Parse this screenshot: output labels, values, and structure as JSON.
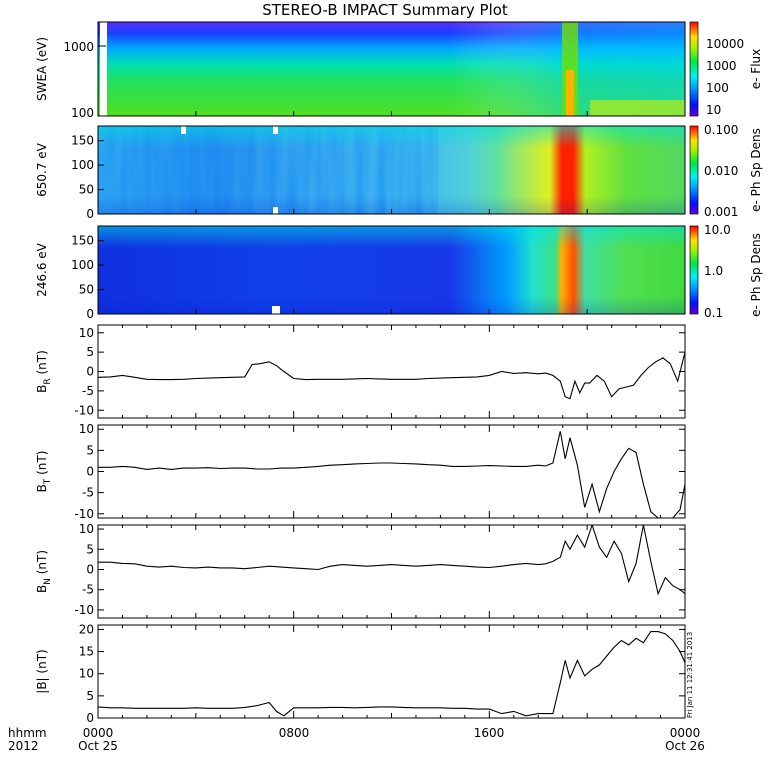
{
  "title": "STEREO-B IMPACT Summary Plot",
  "footer": {
    "left_label_1": "hhmm",
    "left_label_2": "2012",
    "x_ticks": [
      {
        "hhmm": "0000",
        "date": "Oct 25"
      },
      {
        "hhmm": "0800",
        "date": ""
      },
      {
        "hhmm": "1600",
        "date": ""
      },
      {
        "hhmm": "0000",
        "date": "Oct 26"
      }
    ],
    "timestamp": "Fri Jan 11 12:31:41 2013"
  },
  "chart_data": [
    {
      "type": "heatmap",
      "id": "swea",
      "ylabel": "SWEA (eV)",
      "ylog": true,
      "yticks": [
        "1000",
        "100"
      ],
      "colorbar": {
        "label": "e- Flux",
        "ticks": [
          "10000",
          "1000",
          "100",
          "10"
        ],
        "log": true
      }
    },
    {
      "type": "heatmap",
      "id": "pad650",
      "ylabel": "650.7 eV",
      "yticks": [
        "150",
        "100",
        "50",
        "0"
      ],
      "ylim": [
        0,
        180
      ],
      "colorbar": {
        "label": "e- Ph Sp Dens",
        "ticks": [
          "0.100",
          "0.010",
          "0.001"
        ],
        "log": true
      }
    },
    {
      "type": "heatmap",
      "id": "pad246",
      "ylabel": "246.6 eV",
      "yticks": [
        "150",
        "100",
        "50",
        "0"
      ],
      "ylim": [
        0,
        180
      ],
      "colorbar": {
        "label": "e- Ph Sp Dens",
        "ticks": [
          "10.0",
          "1.0",
          "0.1"
        ],
        "log": true
      }
    },
    {
      "type": "line",
      "id": "br",
      "ylabel_main": "B",
      "ylabel_sub": "R",
      "ylabel_unit": "(nT)",
      "ylim": [
        -12,
        12
      ],
      "yticks": [
        10,
        5,
        0,
        -5,
        -10
      ],
      "x_hours": [
        0,
        0.5,
        1,
        1.5,
        2,
        2.5,
        3,
        3.5,
        4,
        4.5,
        5,
        5.5,
        6,
        6.3,
        6.6,
        7,
        7.3,
        7.6,
        8,
        8.5,
        9,
        9.5,
        10,
        10.5,
        11,
        11.5,
        12,
        12.5,
        13,
        13.5,
        14,
        14.5,
        15,
        15.5,
        16,
        16.5,
        17,
        17.5,
        18,
        18.3,
        18.6,
        18.9,
        19.1,
        19.3,
        19.5,
        19.7,
        19.9,
        20.1,
        20.4,
        20.7,
        21,
        21.3,
        21.6,
        21.9,
        22.2,
        22.5,
        22.8,
        23.1,
        23.4,
        23.7,
        24
      ],
      "values": [
        -1.5,
        -1.4,
        -1.0,
        -1.5,
        -2.0,
        -2.1,
        -2.1,
        -2.0,
        -1.8,
        -1.7,
        -1.6,
        -1.5,
        -1.4,
        1.8,
        2.0,
        2.5,
        1.5,
        0,
        -1.8,
        -2.1,
        -2.0,
        -2.0,
        -2.0,
        -1.9,
        -1.8,
        -1.9,
        -2.0,
        -2.0,
        -2.0,
        -1.8,
        -1.7,
        -1.6,
        -1.5,
        -1.4,
        -1.0,
        0,
        -0.5,
        -0.3,
        -0.6,
        -0.4,
        -1.0,
        -2.5,
        -6.5,
        -7.0,
        -2.5,
        -5.5,
        -3.0,
        -3.0,
        -1.0,
        -2.5,
        -6.5,
        -4.5,
        -4.0,
        -3.5,
        -1.0,
        1.0,
        2.5,
        3.5,
        2.0,
        -2.5,
        5.0
      ]
    },
    {
      "type": "line",
      "id": "bt",
      "ylabel_main": "B",
      "ylabel_sub": "T",
      "ylabel_unit": "(nT)",
      "ylim": [
        -11,
        11
      ],
      "yticks": [
        10,
        5,
        0,
        -5,
        -10
      ],
      "x_hours": [
        0,
        0.5,
        1,
        1.5,
        2,
        2.5,
        3,
        3.5,
        4,
        4.5,
        5,
        5.5,
        6,
        6.5,
        7,
        7.5,
        8,
        8.5,
        9,
        9.5,
        10,
        10.5,
        11,
        11.5,
        12,
        12.5,
        13,
        13.5,
        14,
        14.5,
        15,
        15.5,
        16,
        16.5,
        17,
        17.5,
        18,
        18.3,
        18.6,
        18.9,
        19.1,
        19.3,
        19.6,
        19.9,
        20.2,
        20.5,
        20.8,
        21.1,
        21.4,
        21.7,
        22,
        22.3,
        22.6,
        22.9,
        23.2,
        23.5,
        23.8,
        24
      ],
      "values": [
        1.0,
        1.0,
        1.2,
        1.0,
        0.5,
        0.8,
        0.5,
        0.8,
        0.8,
        0.9,
        0.7,
        0.8,
        0.8,
        0.6,
        0.6,
        0.8,
        0.8,
        1.0,
        1.2,
        1.5,
        1.6,
        1.8,
        1.9,
        2.0,
        2.0,
        1.9,
        1.8,
        1.6,
        1.5,
        1.2,
        1.2,
        1.3,
        1.4,
        1.3,
        1.2,
        1.2,
        1.5,
        1.3,
        2.0,
        9.5,
        3.0,
        8.0,
        1.5,
        -8.5,
        -3.0,
        -9.5,
        -4.0,
        0,
        3.0,
        5.5,
        4.5,
        -3.0,
        -9.5,
        -11,
        -11,
        -11,
        -9.0,
        -3.0
      ]
    },
    {
      "type": "line",
      "id": "bn",
      "ylabel_main": "B",
      "ylabel_sub": "N",
      "ylabel_unit": "(nT)",
      "ylim": [
        -12,
        11
      ],
      "yticks": [
        10,
        5,
        0,
        -5,
        -10
      ],
      "x_hours": [
        0,
        0.5,
        1,
        1.5,
        2,
        2.5,
        3,
        3.5,
        4,
        4.5,
        5,
        5.5,
        6,
        6.5,
        7,
        7.5,
        8,
        8.5,
        9,
        9.5,
        10,
        10.5,
        11,
        11.5,
        12,
        12.5,
        13,
        13.5,
        14,
        14.5,
        15,
        15.5,
        16,
        16.5,
        17,
        17.5,
        18,
        18.3,
        18.6,
        18.9,
        19.1,
        19.3,
        19.6,
        19.9,
        20.2,
        20.5,
        20.8,
        21.1,
        21.4,
        21.7,
        22,
        22.3,
        22.6,
        22.9,
        23.2,
        23.5,
        23.8,
        24
      ],
      "values": [
        1.8,
        1.8,
        1.5,
        1.4,
        0.8,
        0.6,
        0.8,
        0.5,
        0.4,
        0.6,
        0.4,
        0.4,
        0.2,
        0.5,
        0.8,
        0.6,
        0.4,
        0.2,
        0,
        0.8,
        1.2,
        1.0,
        0.8,
        1.0,
        1.2,
        1.0,
        0.8,
        1.0,
        1.2,
        1.0,
        0.8,
        0.6,
        0.5,
        0.8,
        1.2,
        1.5,
        1.2,
        1.4,
        2.0,
        3.0,
        7.0,
        5.0,
        8.5,
        5.5,
        11,
        5.5,
        3.0,
        7.0,
        4.0,
        -3.0,
        1.5,
        11,
        2.0,
        -6.0,
        -2.0,
        -4.0,
        -5.0,
        -6.0
      ]
    },
    {
      "type": "line",
      "id": "bmag",
      "ylabel_main": "|B|",
      "ylabel_sub": "",
      "ylabel_unit": "(nT)",
      "ylim": [
        0,
        21
      ],
      "yticks": [
        20,
        15,
        10,
        5,
        0
      ],
      "x_hours": [
        0,
        0.5,
        1,
        1.5,
        2,
        2.5,
        3,
        3.5,
        4,
        4.5,
        5,
        5.5,
        6,
        6.5,
        7,
        7.3,
        7.6,
        8,
        8.5,
        9,
        9.5,
        10,
        10.5,
        11,
        11.5,
        12,
        12.5,
        13,
        13.5,
        14,
        14.5,
        15,
        15.5,
        16,
        16.5,
        17,
        17.5,
        18,
        18.3,
        18.6,
        18.9,
        19.1,
        19.3,
        19.6,
        19.9,
        20.2,
        20.5,
        20.8,
        21.1,
        21.4,
        21.7,
        22,
        22.3,
        22.6,
        22.9,
        23.2,
        23.5,
        23.8,
        24
      ],
      "values": [
        2.5,
        2.3,
        2.3,
        2.2,
        2.2,
        2.2,
        2.2,
        2.2,
        2.3,
        2.2,
        2.2,
        2.2,
        2.4,
        2.8,
        3.5,
        1.5,
        0.5,
        2.3,
        2.3,
        2.3,
        2.4,
        2.4,
        2.3,
        2.4,
        2.5,
        2.5,
        2.4,
        2.3,
        2.3,
        2.3,
        2.2,
        2.2,
        2.0,
        2.0,
        1.0,
        1.5,
        0.5,
        1.0,
        1.0,
        1.0,
        8.0,
        13.0,
        9.0,
        13.0,
        9.5,
        11.0,
        12.0,
        14.0,
        16.0,
        17.5,
        16.5,
        18.0,
        17.0,
        19.5,
        19.5,
        19.0,
        17.5,
        15.0,
        12.5
      ]
    }
  ]
}
